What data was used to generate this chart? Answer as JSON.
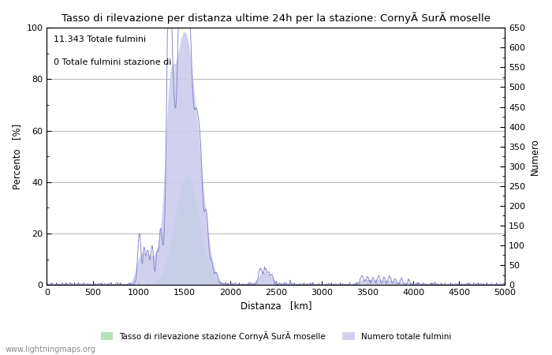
{
  "title": "Tasso di rilevazione per distanza ultime 24h per la stazione: CornyÃ SurÃ moselle",
  "xlabel": "Distanza   [km]",
  "ylabel_left": "Percento   [%]",
  "ylabel_right": "Numero",
  "annotation_line1": "11.343 Totale fulmini",
  "annotation_line2": "0 Totale fulmini stazione di",
  "watermark": "www.lightningmaps.org",
  "legend_label_green": "Tasso di rilevazione stazione CornyÃ SurÃ moselle",
  "legend_label_blue": "Numero totale fulmini",
  "xlim": [
    0,
    5000
  ],
  "ylim_left": [
    0,
    100
  ],
  "ylim_right": [
    0,
    650
  ],
  "xticks": [
    0,
    500,
    1000,
    1500,
    2000,
    2500,
    3000,
    3500,
    4000,
    4500,
    5000
  ],
  "yticks_left": [
    0,
    20,
    40,
    60,
    80,
    100
  ],
  "yticks_right": [
    0,
    50,
    100,
    150,
    200,
    250,
    300,
    350,
    400,
    450,
    500,
    550,
    600,
    650
  ],
  "line_color": "#8888cc",
  "fill_blue_color": "#ccccee",
  "fill_green_color": "#aaddaa",
  "background_color": "#ffffff",
  "grid_color": "#bbbbbb",
  "figsize": [
    7.0,
    4.5
  ],
  "dpi": 100
}
